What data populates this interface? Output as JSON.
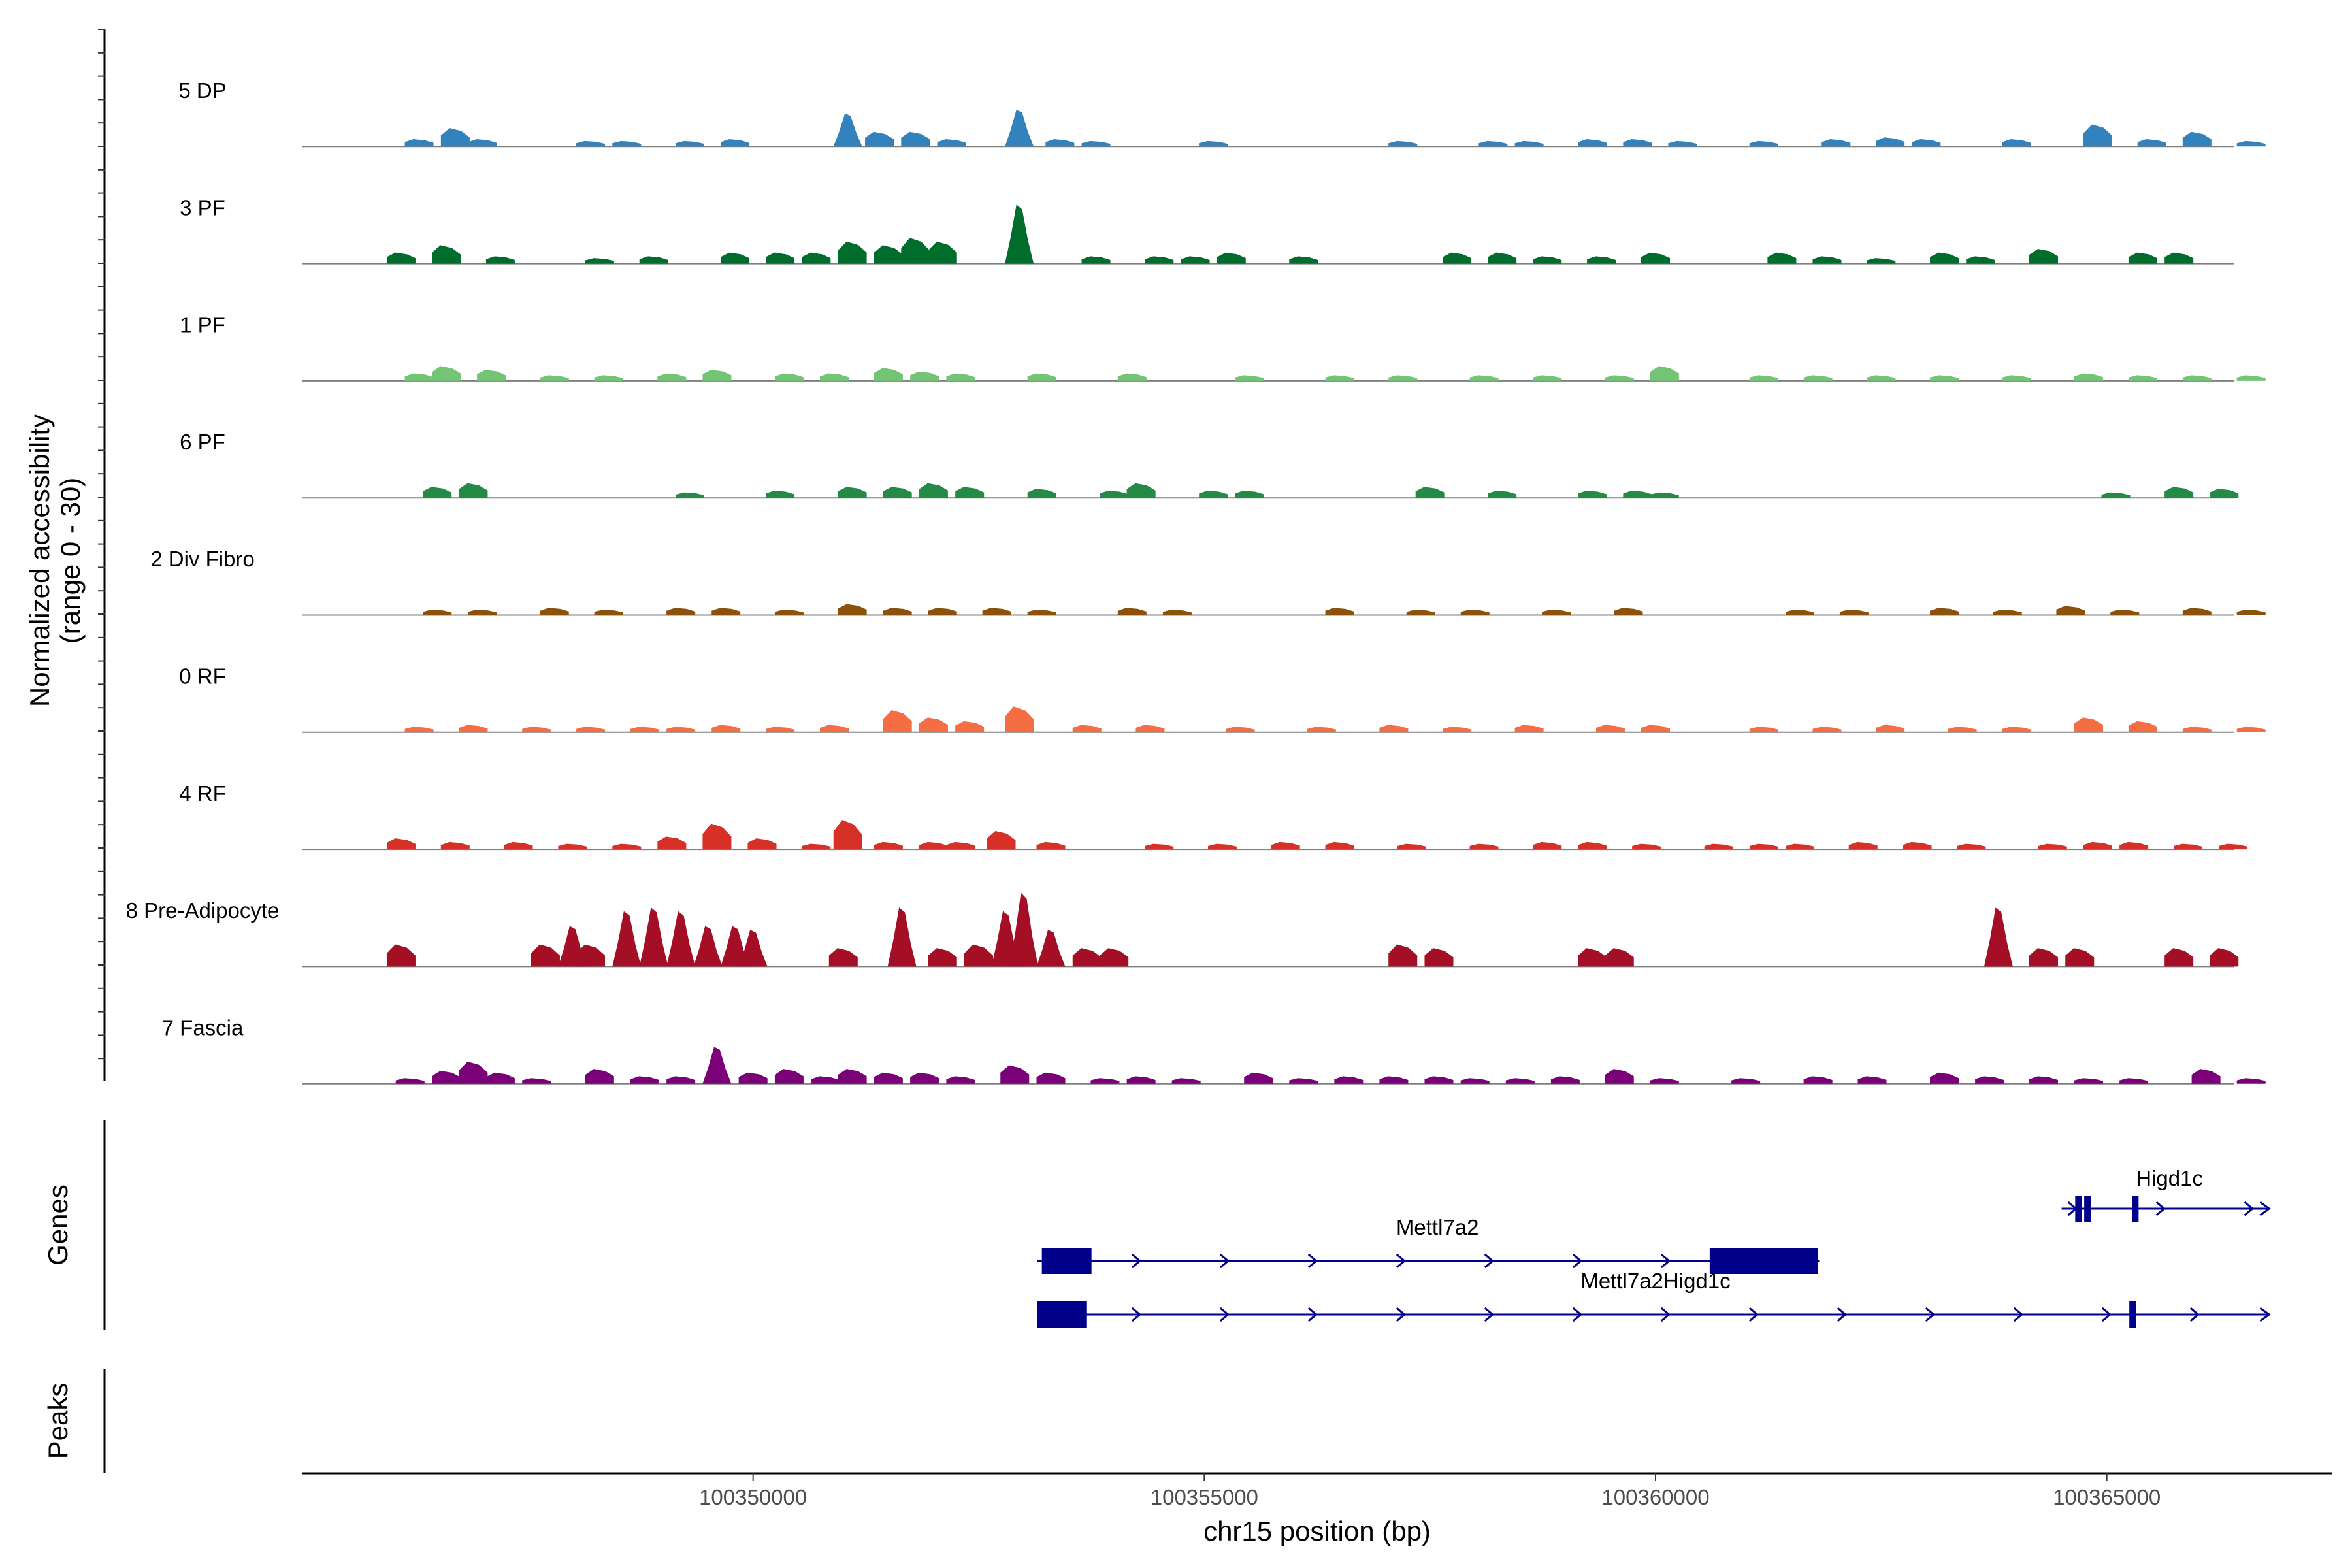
{
  "chart_data": {
    "type": "coverage",
    "title": "",
    "region": {
      "chrom": "chr15",
      "start": 100345000,
      "end": 100367500
    },
    "xlabel": "chr15 position (bp)",
    "ylabel": "Normalized accessibility\n(range 0 - 30)",
    "ylim": [
      0,
      30
    ],
    "x_ticks": [
      {
        "value": 100350000,
        "label": "100350000"
      },
      {
        "value": 100355000,
        "label": "100355000"
      },
      {
        "value": 100360000,
        "label": "100360000"
      },
      {
        "value": 100365000,
        "label": "100365000"
      }
    ],
    "tracks": [
      {
        "name": "5 DP",
        "color": "#3182bd",
        "peaks": [
          [
            100346300,
            2
          ],
          [
            100346700,
            5
          ],
          [
            100347000,
            2
          ],
          [
            100348200,
            1.5
          ],
          [
            100348600,
            1.5
          ],
          [
            100349300,
            1.5
          ],
          [
            100349800,
            2
          ],
          [
            100351050,
            9
          ],
          [
            100351400,
            4
          ],
          [
            100351800,
            4
          ],
          [
            100352200,
            2
          ],
          [
            100352950,
            10
          ],
          [
            100353400,
            2
          ],
          [
            100353800,
            1.5
          ],
          [
            100355100,
            1.5
          ],
          [
            100357200,
            1.5
          ],
          [
            100358200,
            1.5
          ],
          [
            100358600,
            1.5
          ],
          [
            100359300,
            2
          ],
          [
            100359800,
            2
          ],
          [
            100360300,
            1.5
          ],
          [
            100361200,
            1.5
          ],
          [
            100362000,
            2
          ],
          [
            100362600,
            2.5
          ],
          [
            100363000,
            2
          ],
          [
            100364000,
            2
          ],
          [
            100364900,
            6
          ],
          [
            100365500,
            2
          ],
          [
            100366000,
            4
          ],
          [
            100366600,
            1.5
          ]
        ]
      },
      {
        "name": "3 PF",
        "color": "#006d2c",
        "peaks": [
          [
            100346100,
            3
          ],
          [
            100346600,
            5
          ],
          [
            100347200,
            2
          ],
          [
            100348300,
            1.5
          ],
          [
            100348900,
            2
          ],
          [
            100349800,
            3
          ],
          [
            100350300,
            3
          ],
          [
            100350700,
            3
          ],
          [
            100351100,
            6
          ],
          [
            100351500,
            5
          ],
          [
            100351800,
            7
          ],
          [
            100352100,
            6
          ],
          [
            100352950,
            16
          ],
          [
            100353800,
            2
          ],
          [
            100354500,
            2
          ],
          [
            100354900,
            2
          ],
          [
            100355300,
            3
          ],
          [
            100356100,
            2
          ],
          [
            100357800,
            3
          ],
          [
            100358300,
            3
          ],
          [
            100358800,
            2
          ],
          [
            100359400,
            2
          ],
          [
            100360000,
            3
          ],
          [
            100361400,
            3
          ],
          [
            100361900,
            2
          ],
          [
            100362500,
            1.5
          ],
          [
            100363200,
            3
          ],
          [
            100363600,
            2
          ],
          [
            100364300,
            4
          ],
          [
            100365400,
            3
          ],
          [
            100365800,
            3
          ]
        ]
      },
      {
        "name": "1 PF",
        "color": "#74c476",
        "peaks": [
          [
            100346300,
            2
          ],
          [
            100346600,
            4
          ],
          [
            100347100,
            3
          ],
          [
            100347800,
            1.5
          ],
          [
            100348400,
            1.5
          ],
          [
            100349100,
            2
          ],
          [
            100349600,
            3
          ],
          [
            100350400,
            2
          ],
          [
            100350900,
            2
          ],
          [
            100351500,
            3.5
          ],
          [
            100351900,
            2.5
          ],
          [
            100352300,
            2
          ],
          [
            100353200,
            2
          ],
          [
            100354200,
            2
          ],
          [
            100355500,
            1.5
          ],
          [
            100356500,
            1.5
          ],
          [
            100357200,
            1.5
          ],
          [
            100358100,
            1.5
          ],
          [
            100358800,
            1.5
          ],
          [
            100359600,
            1.5
          ],
          [
            100360100,
            4
          ],
          [
            100361200,
            1.5
          ],
          [
            100361800,
            1.5
          ],
          [
            100362500,
            1.5
          ],
          [
            100363200,
            1.5
          ],
          [
            100364000,
            1.5
          ],
          [
            100364800,
            2
          ],
          [
            100365400,
            1.5
          ],
          [
            100366000,
            1.5
          ],
          [
            100366600,
            1.5
          ]
        ]
      },
      {
        "name": "6 PF",
        "color": "#238b45",
        "peaks": [
          [
            100346500,
            3
          ],
          [
            100346900,
            4
          ],
          [
            100349300,
            1.5
          ],
          [
            100350300,
            2
          ],
          [
            100351100,
            3
          ],
          [
            100351600,
            3
          ],
          [
            100352000,
            4
          ],
          [
            100352400,
            3
          ],
          [
            100353200,
            2.5
          ],
          [
            100354000,
            2
          ],
          [
            100354300,
            4
          ],
          [
            100355100,
            2
          ],
          [
            100355500,
            2
          ],
          [
            100357500,
            3
          ],
          [
            100358300,
            2
          ],
          [
            100359300,
            2
          ],
          [
            100359800,
            2
          ],
          [
            100360100,
            1.5
          ],
          [
            100365100,
            1.5
          ],
          [
            100365800,
            3
          ],
          [
            100366300,
            2.5
          ]
        ]
      },
      {
        "name": "2 Div Fibro",
        "color": "#8c510a",
        "peaks": [
          [
            100346500,
            1.5
          ],
          [
            100347000,
            1.5
          ],
          [
            100347800,
            2
          ],
          [
            100348400,
            1.5
          ],
          [
            100349200,
            2
          ],
          [
            100349700,
            2
          ],
          [
            100350400,
            1.5
          ],
          [
            100351100,
            3
          ],
          [
            100351600,
            2
          ],
          [
            100352100,
            2
          ],
          [
            100352700,
            2
          ],
          [
            100353200,
            1.5
          ],
          [
            100354200,
            2
          ],
          [
            100354700,
            1.5
          ],
          [
            100356500,
            2
          ],
          [
            100357400,
            1.5
          ],
          [
            100358000,
            1.5
          ],
          [
            100358900,
            1.5
          ],
          [
            100359700,
            2
          ],
          [
            100361600,
            1.5
          ],
          [
            100362200,
            1.5
          ],
          [
            100363200,
            2
          ],
          [
            100363900,
            1.5
          ],
          [
            100364600,
            2.5
          ],
          [
            100365200,
            1.5
          ],
          [
            100366000,
            2
          ],
          [
            100366600,
            1.5
          ]
        ]
      },
      {
        "name": "0 RF",
        "color": "#f46d43",
        "peaks": [
          [
            100346300,
            1.5
          ],
          [
            100346900,
            2
          ],
          [
            100347600,
            1.5
          ],
          [
            100348200,
            1.5
          ],
          [
            100348800,
            1.5
          ],
          [
            100349200,
            1.5
          ],
          [
            100349700,
            2
          ],
          [
            100350300,
            1.5
          ],
          [
            100350900,
            2
          ],
          [
            100351600,
            6
          ],
          [
            100352000,
            4
          ],
          [
            100352400,
            3
          ],
          [
            100352950,
            7
          ],
          [
            100353700,
            2
          ],
          [
            100354400,
            2
          ],
          [
            100355400,
            1.5
          ],
          [
            100356300,
            1.5
          ],
          [
            100357100,
            2
          ],
          [
            100357800,
            1.5
          ],
          [
            100358600,
            2
          ],
          [
            100359500,
            2
          ],
          [
            100360000,
            2
          ],
          [
            100361200,
            1.5
          ],
          [
            100361900,
            1.5
          ],
          [
            100362600,
            2
          ],
          [
            100363400,
            1.5
          ],
          [
            100364000,
            1.5
          ],
          [
            100364800,
            4
          ],
          [
            100365400,
            3
          ],
          [
            100366000,
            1.5
          ],
          [
            100366600,
            1.5
          ]
        ]
      },
      {
        "name": "4 RF",
        "color": "#d73027",
        "peaks": [
          [
            100346100,
            3
          ],
          [
            100346700,
            2
          ],
          [
            100347400,
            2
          ],
          [
            100348000,
            1.5
          ],
          [
            100348600,
            1.5
          ],
          [
            100349100,
            3.5
          ],
          [
            100349600,
            7
          ],
          [
            100350100,
            3
          ],
          [
            100350700,
            1.5
          ],
          [
            100351050,
            8
          ],
          [
            100351500,
            2
          ],
          [
            100352000,
            2
          ],
          [
            100352300,
            2
          ],
          [
            100352750,
            5
          ],
          [
            100353300,
            2
          ],
          [
            100354500,
            1.5
          ],
          [
            100355200,
            1.5
          ],
          [
            100355900,
            2
          ],
          [
            100356500,
            2
          ],
          [
            100357300,
            1.5
          ],
          [
            100358100,
            1.5
          ],
          [
            100358800,
            2
          ],
          [
            100359300,
            2
          ],
          [
            100359900,
            1.5
          ],
          [
            100360700,
            1.5
          ],
          [
            100361200,
            1.5
          ],
          [
            100361600,
            1.5
          ],
          [
            100362300,
            2
          ],
          [
            100362900,
            2
          ],
          [
            100363500,
            1.5
          ],
          [
            100364400,
            1.5
          ],
          [
            100364900,
            2
          ],
          [
            100365300,
            2
          ],
          [
            100365900,
            1.5
          ],
          [
            100366400,
            1.5
          ]
        ]
      },
      {
        "name": "8 Pre-Adipocyte",
        "color": "#a50f26",
        "peaks": [
          [
            100346100,
            6
          ],
          [
            100347700,
            6
          ],
          [
            100348000,
            11
          ],
          [
            100348200,
            6
          ],
          [
            100348600,
            15
          ],
          [
            100348900,
            16
          ],
          [
            100349200,
            15
          ],
          [
            100349500,
            11
          ],
          [
            100349800,
            11
          ],
          [
            100350000,
            10
          ],
          [
            100351000,
            5
          ],
          [
            100351650,
            16
          ],
          [
            100352100,
            5
          ],
          [
            100352500,
            6
          ],
          [
            100352800,
            15
          ],
          [
            100353000,
            20
          ],
          [
            100353300,
            10
          ],
          [
            100353700,
            5
          ],
          [
            100354000,
            5
          ],
          [
            100357200,
            6
          ],
          [
            100357600,
            5
          ],
          [
            100359300,
            5
          ],
          [
            100359600,
            5
          ],
          [
            100363800,
            16
          ],
          [
            100364300,
            5
          ],
          [
            100364700,
            5
          ],
          [
            100365800,
            5
          ],
          [
            100366300,
            5
          ]
        ]
      },
      {
        "name": "7 Fascia",
        "color": "#7a0177",
        "peaks": [
          [
            100346200,
            1.5
          ],
          [
            100346600,
            3.5
          ],
          [
            100346900,
            6
          ],
          [
            100347200,
            3
          ],
          [
            100347600,
            1.5
          ],
          [
            100348300,
            4
          ],
          [
            100348800,
            2
          ],
          [
            100349200,
            2
          ],
          [
            100349600,
            10
          ],
          [
            100350000,
            3
          ],
          [
            100350400,
            4
          ],
          [
            100350800,
            2
          ],
          [
            100351100,
            4
          ],
          [
            100351500,
            3
          ],
          [
            100351900,
            3
          ],
          [
            100352300,
            2
          ],
          [
            100352900,
            5
          ],
          [
            100353300,
            3
          ],
          [
            100353900,
            1.5
          ],
          [
            100354300,
            2
          ],
          [
            100354800,
            1.5
          ],
          [
            100355600,
            3
          ],
          [
            100356100,
            1.5
          ],
          [
            100356600,
            2
          ],
          [
            100357100,
            2
          ],
          [
            100357600,
            2
          ],
          [
            100358000,
            1.5
          ],
          [
            100358500,
            1.5
          ],
          [
            100359000,
            2
          ],
          [
            100359600,
            4
          ],
          [
            100360100,
            1.5
          ],
          [
            100361000,
            1.5
          ],
          [
            100361800,
            2
          ],
          [
            100362400,
            2
          ],
          [
            100363200,
            3
          ],
          [
            100363700,
            2
          ],
          [
            100364300,
            2
          ],
          [
            100364800,
            1.5
          ],
          [
            100365300,
            1.5
          ],
          [
            100366100,
            4
          ],
          [
            100366600,
            1.5
          ]
        ]
      }
    ],
    "genes": [
      {
        "name": "Higd1c",
        "strand": "+",
        "row": 0,
        "start": 100364500,
        "end": 100366800,
        "exons": [
          [
            100364650,
            100364700
          ],
          [
            100364750,
            100364800
          ],
          [
            100365280,
            100365350
          ]
        ]
      },
      {
        "name": "Mettl7a2",
        "strand": "+",
        "row": 1,
        "start": 100353150,
        "end": 100361800,
        "exons": [
          [
            100353200,
            100353750
          ],
          [
            100360600,
            100361800
          ]
        ]
      },
      {
        "name": "Mettl7a2Higd1c",
        "strand": "+",
        "row": 2,
        "start": 100353150,
        "end": 100366800,
        "exons": [
          [
            100353150,
            100353700
          ],
          [
            100365250,
            100365320
          ]
        ]
      }
    ],
    "side_panels": [
      "Genes",
      "Peaks"
    ],
    "peaks_track": []
  }
}
